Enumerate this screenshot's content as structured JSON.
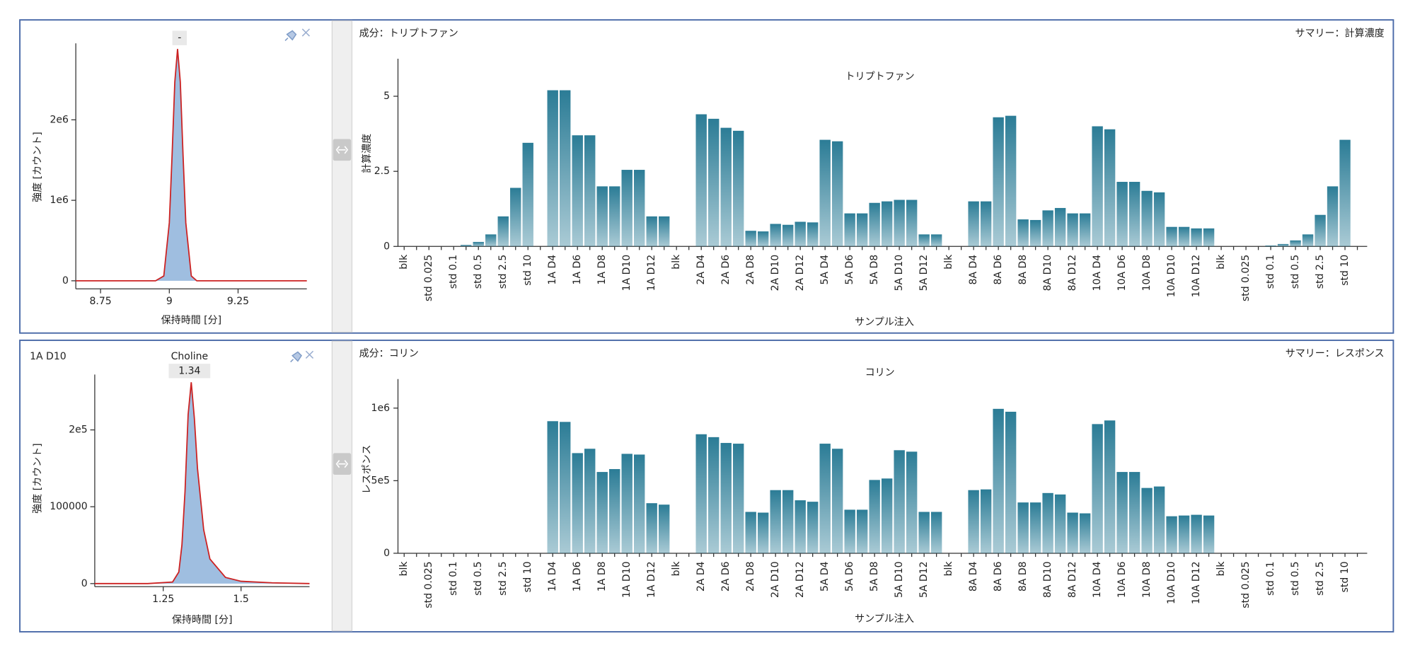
{
  "chart_data": [
    {
      "type": "area",
      "title": "-",
      "xlabel": "保持時間 [分]",
      "ylabel": "強度 [カウント]",
      "x": [
        8.66,
        8.9,
        8.95,
        8.98,
        9.0,
        9.01,
        9.02,
        9.03,
        9.04,
        9.05,
        9.06,
        9.08,
        9.1,
        9.2,
        9.5
      ],
      "values": [
        0,
        0,
        0,
        60000,
        720000,
        1555000,
        2470000,
        2880000,
        2470000,
        1555000,
        720000,
        60000,
        0,
        0,
        0
      ],
      "color": "#cc2222",
      "fill_color": "#7fa8d6",
      "xlim": [
        8.66,
        9.5
      ],
      "ylim": [
        -100000,
        2950000
      ],
      "xticks": [
        8.75,
        9,
        9.25
      ],
      "yticks": [
        0,
        {
          "value": 1000000,
          "label": "1e6"
        },
        {
          "value": 2000000,
          "label": "2e6"
        }
      ]
    },
    {
      "type": "bar",
      "component": "成分：トリプトファン",
      "summary": "サマリー：計算濃度",
      "title": "トリプトファン",
      "xlabel": "サンプル注入",
      "ylabel": "計算濃度",
      "color": "#2b7c96",
      "categories": [
        "blk",
        null,
        "std 0.025",
        null,
        "std 0.1",
        null,
        "std 0.5",
        null,
        "std 2.5",
        null,
        "std 10",
        null,
        "1A D4",
        null,
        "1A D6",
        null,
        "1A D8",
        null,
        "1A D10",
        null,
        "1A D12",
        null,
        "blk",
        null,
        "2A D4",
        null,
        "2A D6",
        null,
        "2A D8",
        null,
        "2A D10",
        null,
        "2A D12",
        null,
        "5A D4",
        null,
        "5A D6",
        null,
        "5A D8",
        null,
        "5A D10",
        null,
        "5A D12",
        null,
        "blk",
        null,
        "8A D4",
        null,
        "8A D6",
        null,
        "8A D8",
        null,
        "8A D10",
        null,
        "8A D12",
        null,
        "10A D4",
        null,
        "10A D6",
        null,
        "10A D8",
        null,
        "10A D10",
        null,
        "10A D12",
        null,
        "blk",
        null,
        "std 0.025",
        null,
        "std 0.1",
        null,
        "std 0.5",
        null,
        "std 2.5",
        null,
        "std 10",
        null
      ],
      "values": [
        0,
        0,
        0,
        0,
        0,
        0.05,
        0.15,
        0.4,
        1.0,
        1.95,
        3.45,
        0,
        5.2,
        5.2,
        3.7,
        3.7,
        2.0,
        2.0,
        2.55,
        2.55,
        1.0,
        1.0,
        0,
        0,
        4.4,
        4.25,
        3.95,
        3.85,
        0.52,
        0.5,
        0.75,
        0.72,
        0.82,
        0.8,
        3.55,
        3.5,
        1.1,
        1.1,
        1.45,
        1.5,
        1.55,
        1.55,
        0.4,
        0.4,
        0,
        0,
        1.5,
        1.5,
        4.3,
        4.35,
        0.9,
        0.88,
        1.2,
        1.28,
        1.1,
        1.1,
        4.0,
        3.9,
        2.15,
        2.15,
        1.85,
        1.8,
        0.65,
        0.65,
        0.6,
        0.6,
        0,
        0,
        0,
        0,
        0.03,
        0.08,
        0.2,
        0.4,
        1.05,
        2.0,
        3.55,
        0
      ],
      "ylim": [
        0,
        6.25
      ],
      "yticks": [
        0,
        2.5,
        5
      ]
    },
    {
      "type": "area",
      "sample": "1A D10",
      "title": "Choline",
      "subtitle": "1.34",
      "xlabel": "保持時間 [分]",
      "ylabel": "強度 [カウント]",
      "x": [
        1.03,
        1.2,
        1.28,
        1.3,
        1.31,
        1.32,
        1.33,
        1.34,
        1.35,
        1.36,
        1.38,
        1.4,
        1.45,
        1.5,
        1.6,
        1.72
      ],
      "values": [
        0,
        0,
        2000,
        15000,
        50000,
        120000,
        220000,
        262000,
        215000,
        150000,
        70000,
        32000,
        8000,
        3000,
        1000,
        0
      ],
      "color": "#cc2222",
      "fill_color": "#7fa8d6",
      "xlim": [
        1.03,
        1.72
      ],
      "ylim": [
        -4000,
        272000
      ],
      "xticks": [
        1.25,
        1.5
      ],
      "yticks": [
        0,
        100000,
        {
          "value": 200000,
          "label": "2e5"
        }
      ]
    },
    {
      "type": "bar",
      "component": "成分：コリン",
      "summary": "サマリー：レスポンス",
      "title": "コリン",
      "xlabel": "サンプル注入",
      "ylabel": "レスポンス",
      "color": "#2b7c96",
      "categories": [
        "blk",
        null,
        "std 0.025",
        null,
        "std 0.1",
        null,
        "std 0.5",
        null,
        "std 2.5",
        null,
        "std 10",
        null,
        "1A D4",
        null,
        "1A D6",
        null,
        "1A D8",
        null,
        "1A D10",
        null,
        "1A D12",
        null,
        "blk",
        null,
        "2A D4",
        null,
        "2A D6",
        null,
        "2A D8",
        null,
        "2A D10",
        null,
        "2A D12",
        null,
        "5A D4",
        null,
        "5A D6",
        null,
        "5A D8",
        null,
        "5A D10",
        null,
        "5A D12",
        null,
        "blk",
        null,
        "8A D4",
        null,
        "8A D6",
        null,
        "8A D8",
        null,
        "8A D10",
        null,
        "8A D12",
        null,
        "10A D4",
        null,
        "10A D6",
        null,
        "10A D8",
        null,
        "10A D10",
        null,
        "10A D12",
        null,
        "blk",
        null,
        "std 0.025",
        null,
        "std 0.1",
        null,
        "std 0.5",
        null,
        "std 2.5",
        null,
        "std 10",
        null
      ],
      "values": [
        0,
        0,
        0,
        0,
        0,
        0,
        0,
        0,
        0,
        0,
        0,
        0,
        910000,
        905000,
        690000,
        720000,
        560000,
        580000,
        685000,
        680000,
        345000,
        335000,
        0,
        0,
        820000,
        800000,
        760000,
        755000,
        285000,
        280000,
        435000,
        435000,
        365000,
        355000,
        755000,
        720000,
        300000,
        300000,
        505000,
        515000,
        710000,
        700000,
        285000,
        285000,
        0,
        0,
        435000,
        440000,
        995000,
        975000,
        350000,
        350000,
        415000,
        405000,
        280000,
        275000,
        890000,
        915000,
        560000,
        560000,
        450000,
        460000,
        255000,
        260000,
        265000,
        260000,
        0,
        0,
        0,
        0,
        0,
        0,
        0,
        0,
        0,
        0,
        0,
        0
      ],
      "ylim": [
        0,
        1200000
      ],
      "yticks": [
        0,
        {
          "value": 500000,
          "label": "5e5"
        },
        {
          "value": 1000000,
          "label": "1e6"
        }
      ]
    }
  ]
}
